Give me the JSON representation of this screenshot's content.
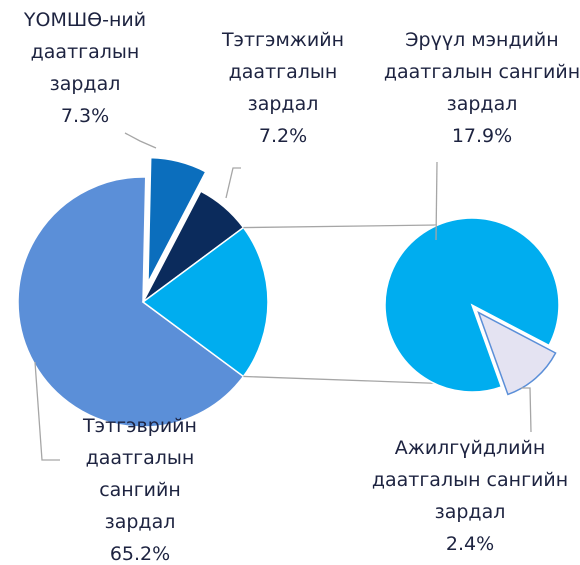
{
  "chart_data": {
    "type": "pie_of_pie",
    "categories": [
      "Тэтгэврийн даатгалын сангийн зардал",
      "ҮОМШӨ-ний даатгалын зардал",
      "Тэтгэмжийн даатгалын зардал",
      "Эрүүл мэндийн даатгалын сангийн зардал",
      "Ажилгүйдлийн даатгалын сангийн зардал"
    ],
    "values": [
      65.2,
      7.3,
      7.2,
      17.9,
      2.4
    ],
    "value_labels": [
      "65.2%",
      "7.3%",
      "7.2%",
      "17.9%",
      "2.4%"
    ],
    "colors": [
      "#5b8fd8",
      "#0b6ebd",
      "#0b2b5c",
      "#00adef",
      "#e4e3f2"
    ],
    "explode": [
      false,
      true,
      false,
      false,
      true
    ],
    "second_plot_values": 2
  }
}
